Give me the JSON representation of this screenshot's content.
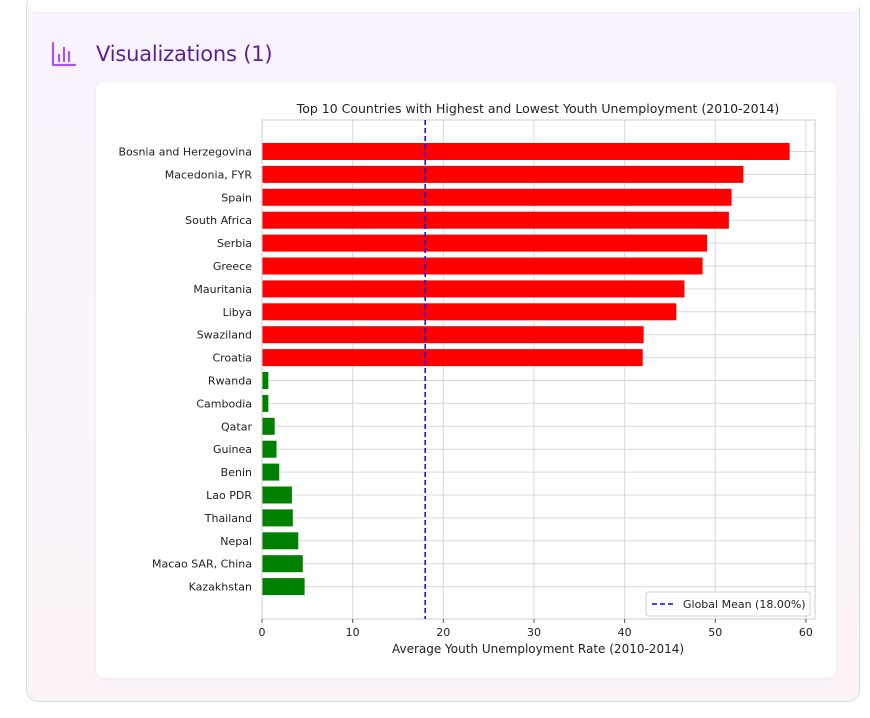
{
  "section": {
    "title": "Visualizations (1)",
    "icon": "bar-chart-icon"
  },
  "colors": {
    "accent": "#5b1f9a",
    "icon": "#a855f7",
    "high": "#ff0000",
    "low": "#008000",
    "mean_line": "#0000ff"
  },
  "chart_data": {
    "type": "bar",
    "orientation": "horizontal",
    "title": "Top 10 Countries with Highest and Lowest Youth Unemployment (2010-2014)",
    "xlabel": "Average Youth Unemployment Rate (2010-2014)",
    "ylabel": "",
    "xlim": [
      0,
      61
    ],
    "xticks": [
      0,
      10,
      20,
      30,
      40,
      50,
      60
    ],
    "grid": true,
    "legend_position": "bottom-right",
    "categories": [
      "Bosnia and Herzegovina",
      "Macedonia, FYR",
      "Spain",
      "South Africa",
      "Serbia",
      "Greece",
      "Mauritania",
      "Libya",
      "Swaziland",
      "Croatia",
      "Rwanda",
      "Cambodia",
      "Qatar",
      "Guinea",
      "Benin",
      "Lao PDR",
      "Thailand",
      "Nepal",
      "Macao SAR, China",
      "Kazakhstan"
    ],
    "values": [
      58.2,
      53.1,
      51.8,
      51.5,
      49.1,
      48.6,
      46.6,
      45.7,
      42.1,
      42.0,
      0.7,
      0.7,
      1.4,
      1.6,
      1.9,
      3.3,
      3.4,
      4.0,
      4.5,
      4.7
    ],
    "bar_colors": [
      "#ff0000",
      "#ff0000",
      "#ff0000",
      "#ff0000",
      "#ff0000",
      "#ff0000",
      "#ff0000",
      "#ff0000",
      "#ff0000",
      "#ff0000",
      "#008000",
      "#008000",
      "#008000",
      "#008000",
      "#008000",
      "#008000",
      "#008000",
      "#008000",
      "#008000",
      "#008000"
    ],
    "mean_line": {
      "value": 18.0,
      "label": "Global Mean (18.00%)",
      "color": "#0000ff",
      "style": "dashed"
    }
  }
}
